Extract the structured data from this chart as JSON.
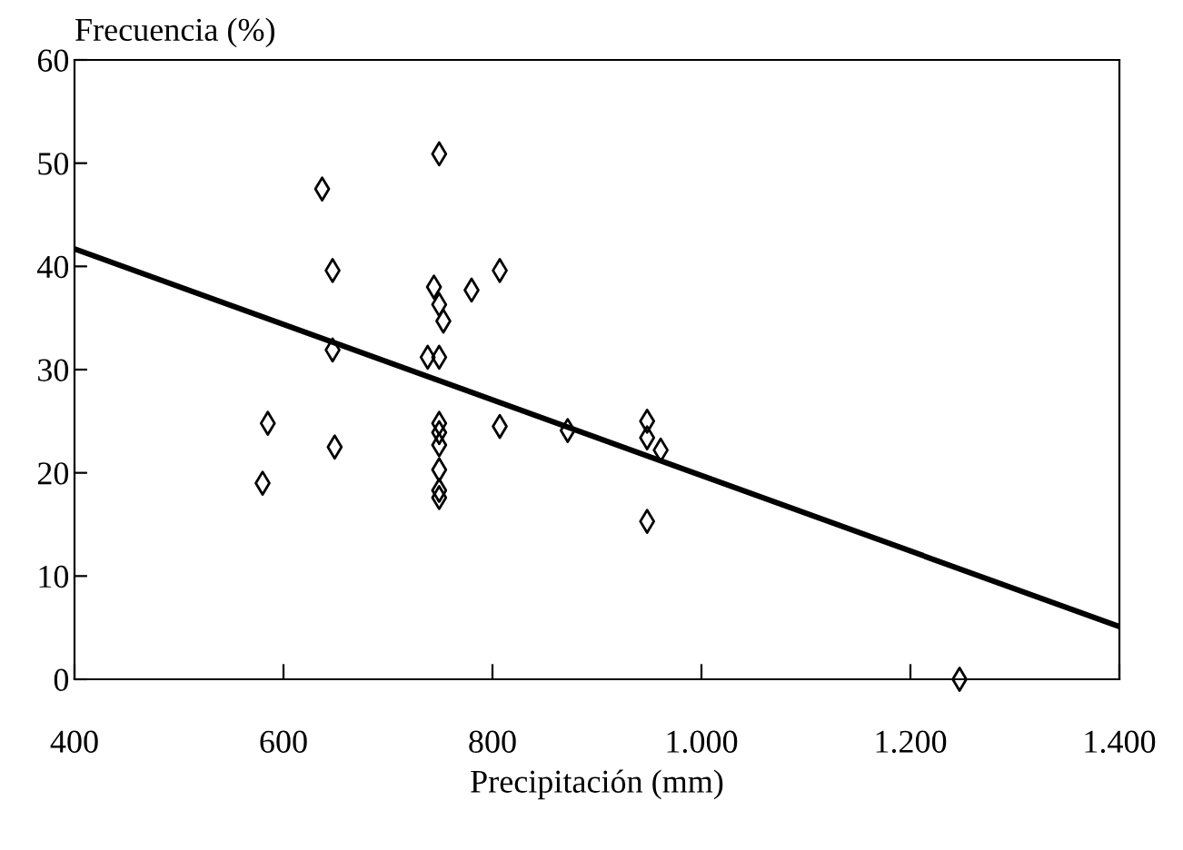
{
  "chart_data": {
    "type": "scatter",
    "ylabel": "Frecuencia (%)",
    "xlabel": "Precipitación (mm)",
    "xlim": [
      400,
      1400
    ],
    "ylim": [
      0,
      60
    ],
    "xticks": [
      400,
      600,
      800,
      {
        "value": 1000,
        "label": "1.000"
      },
      {
        "value": 1200,
        "label": "1.200"
      },
      {
        "value": 1400,
        "label": "1.400"
      }
    ],
    "yticks": [
      0,
      10,
      20,
      30,
      40,
      50,
      60
    ],
    "grid": false,
    "legend": false,
    "marker": "diamond",
    "series": [
      {
        "color": "#000000",
        "x": [
          580,
          585,
          637,
          647,
          647,
          649,
          749,
          744,
          749,
          753,
          738,
          749,
          749,
          749,
          749,
          749,
          749,
          749,
          780,
          807,
          807,
          872,
          948,
          948,
          961,
          948,
          1247
        ],
        "values": [
          19.0,
          24.8,
          47.5,
          39.6,
          31.9,
          22.5,
          50.9,
          38.0,
          36.3,
          34.7,
          31.2,
          31.2,
          24.8,
          23.9,
          22.7,
          20.3,
          18.3,
          17.6,
          37.7,
          39.6,
          24.5,
          24.1,
          25.0,
          23.4,
          22.2,
          15.3,
          0
        ]
      },
      {
        "type": "line",
        "color": "#000000",
        "marker": "none",
        "line_style": "solid",
        "x": [
          400,
          1400
        ],
        "values": [
          41.7,
          5.1
        ]
      }
    ]
  }
}
